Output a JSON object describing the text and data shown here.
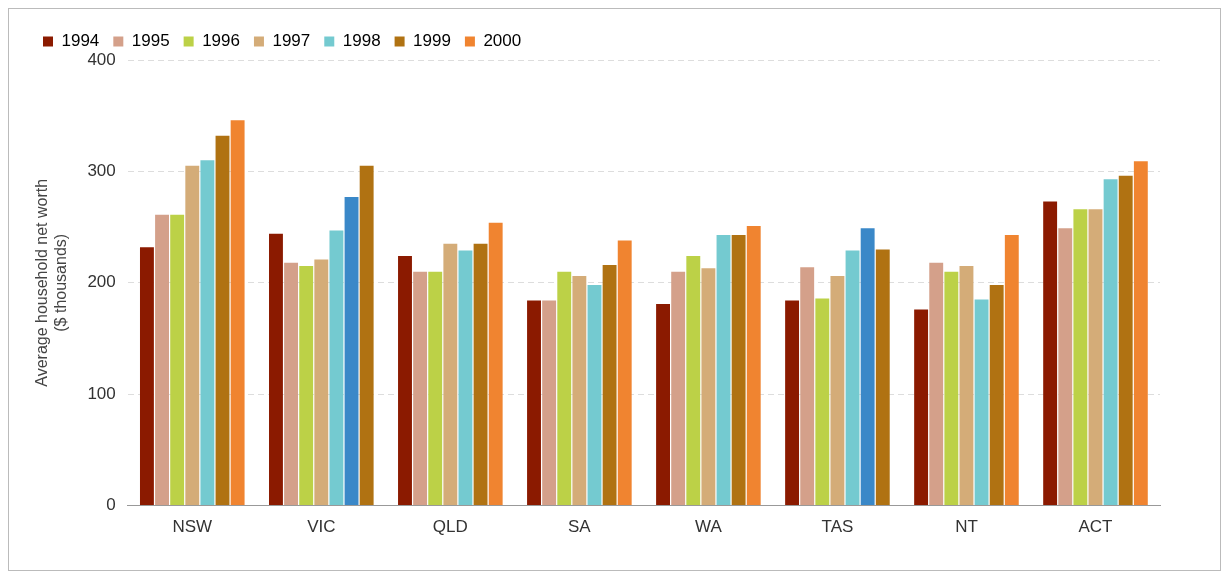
{
  "chart_data": {
    "type": "bar",
    "ylabel": "Average household net worth\n($ thousands)",
    "categories": [
      "NSW",
      "VIC",
      "QLD",
      "SA",
      "WA",
      "TAS",
      "NT",
      "ACT"
    ],
    "series": [
      {
        "name": "1994",
        "color": "#8b1a00",
        "values": [
          232,
          244,
          224,
          184,
          181,
          184,
          176,
          273
        ]
      },
      {
        "name": "1995",
        "color": "#d4a08a",
        "values": [
          261,
          218,
          210,
          184,
          210,
          214,
          218,
          249
        ]
      },
      {
        "name": "1996",
        "color": "#bcd147",
        "values": [
          261,
          215,
          210,
          210,
          224,
          186,
          210,
          266
        ]
      },
      {
        "name": "1997",
        "color": "#d4ac78",
        "values": [
          305,
          221,
          235,
          206,
          213,
          206,
          215,
          266
        ]
      },
      {
        "name": "1998",
        "color": "#74cad0",
        "values": [
          310,
          247,
          229,
          198,
          243,
          229,
          185,
          293
        ]
      },
      {
        "name": "1999",
        "color": "#b07212",
        "colors": [
          "#b07212",
          "#3a88c8",
          "#b07212",
          "#b07212",
          "#b07212",
          "#3a88c8",
          "#b07212",
          "#b07212"
        ],
        "values": [
          332,
          277,
          235,
          216,
          243,
          249,
          198,
          296
        ]
      },
      {
        "name": "2000",
        "color": "#f08430",
        "colors": [
          "#f08430",
          "#b07212",
          "#f08430",
          "#f08430",
          "#f08430",
          "#b07212",
          "#f08430",
          "#f08430"
        ],
        "values": [
          346,
          305,
          254,
          238,
          251,
          230,
          243,
          309
        ]
      }
    ],
    "ylim": [
      0,
      400
    ],
    "yticks": [
      0,
      100,
      200,
      300,
      400
    ],
    "grid": "y",
    "legend": "top"
  }
}
